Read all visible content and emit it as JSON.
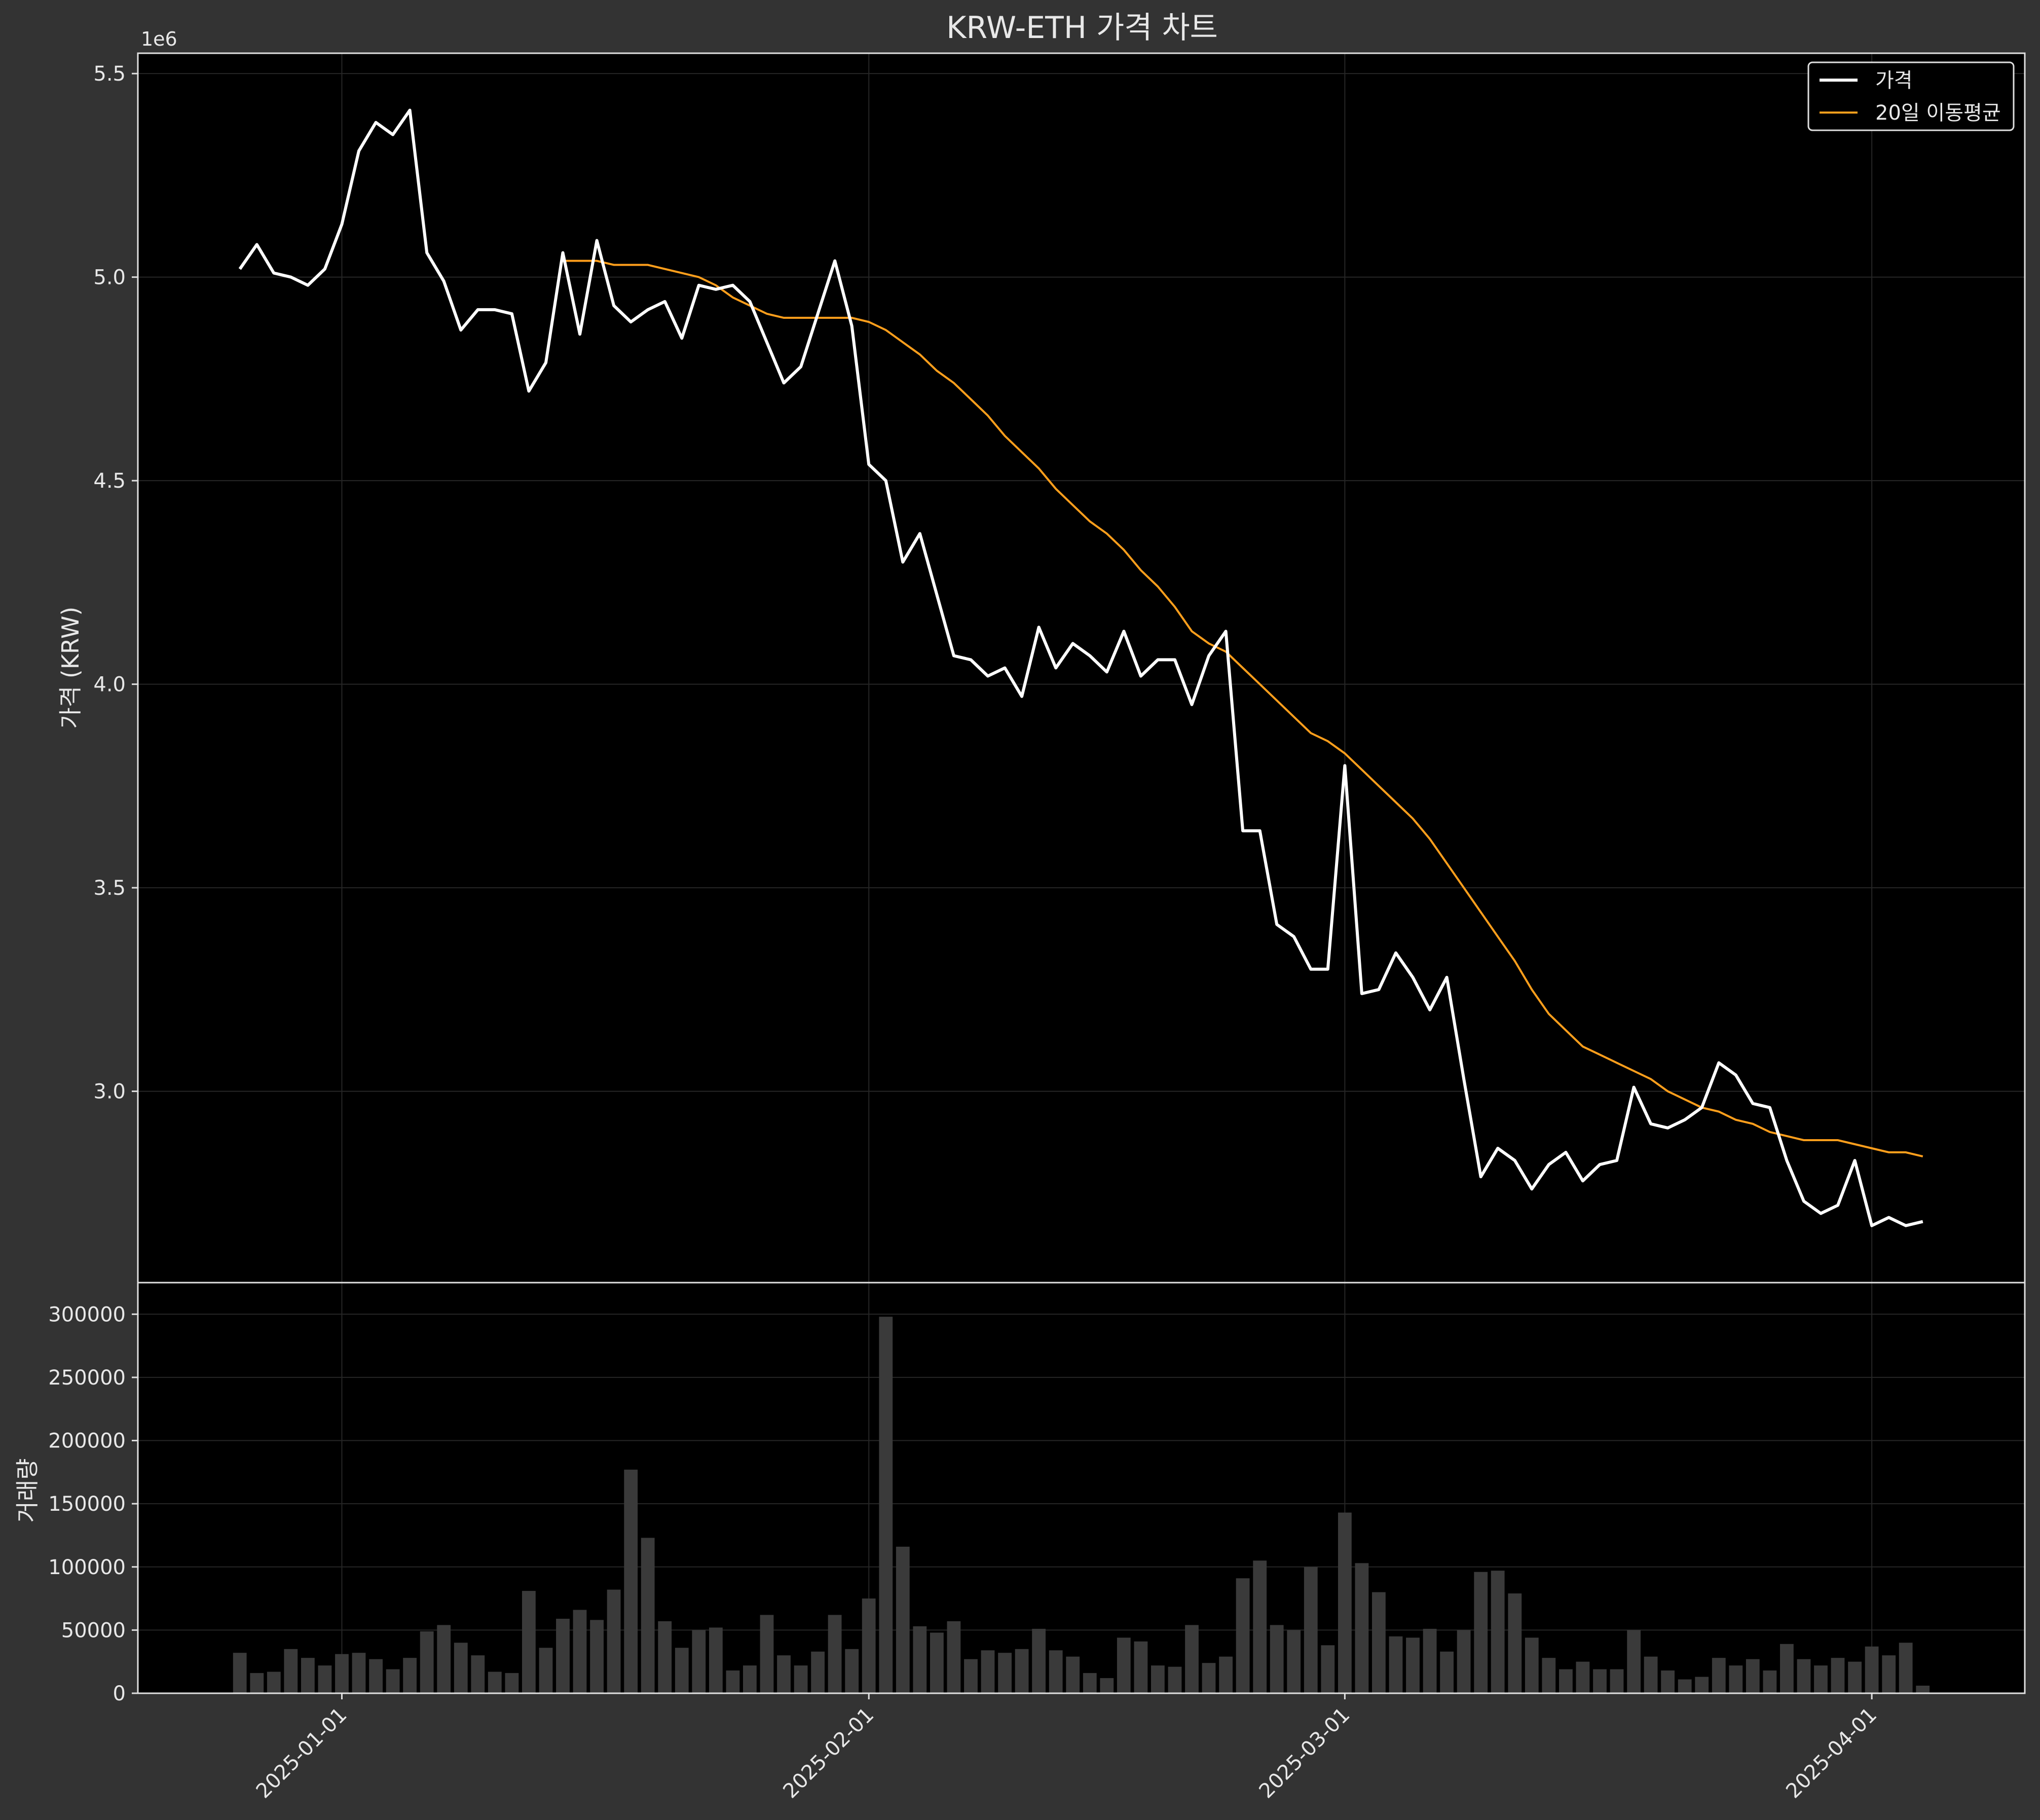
{
  "chart_data": [
    {
      "type": "line",
      "title": "KRW-ETH 가격 차트",
      "ylabel": "가격 (KRW)",
      "offset_label": "1e6",
      "ylim": [
        2.53,
        5.55
      ],
      "yticks": [
        3.0,
        3.5,
        4.0,
        4.5,
        5.0,
        5.5
      ],
      "ytick_labels": [
        "3.0",
        "3.5",
        "4.0",
        "4.5",
        "5.0",
        "5.5"
      ],
      "x_start": "2024-12-26",
      "x_end": "2025-04-05",
      "xlim": [
        "2024-12-20",
        "2025-04-10"
      ],
      "grid": true,
      "legend": "top-right",
      "series": [
        {
          "name": "가격",
          "color": "#ffffff",
          "values": [
            5.02,
            5.08,
            5.01,
            5.0,
            4.98,
            5.02,
            5.13,
            5.31,
            5.38,
            5.35,
            5.41,
            5.06,
            4.99,
            4.87,
            4.92,
            4.92,
            4.91,
            4.72,
            4.79,
            5.06,
            4.86,
            5.09,
            4.93,
            4.89,
            4.92,
            4.94,
            4.85,
            4.98,
            4.97,
            4.98,
            4.94,
            4.84,
            4.74,
            4.78,
            4.91,
            5.04,
            4.88,
            4.54,
            4.5,
            4.3,
            4.37,
            4.22,
            4.07,
            4.06,
            4.02,
            4.04,
            3.97,
            4.14,
            4.04,
            4.1,
            4.07,
            4.03,
            4.13,
            4.02,
            4.06,
            4.06,
            3.95,
            4.07,
            4.13,
            3.64,
            3.64,
            3.41,
            3.38,
            3.3,
            3.3,
            3.8,
            3.24,
            3.25,
            3.34,
            3.28,
            3.2,
            3.28,
            3.03,
            2.79,
            2.86,
            2.83,
            2.76,
            2.82,
            2.85,
            2.78,
            2.82,
            2.83,
            3.01,
            2.92,
            2.91,
            2.93,
            2.96,
            3.07,
            3.04,
            2.97,
            2.96,
            2.83,
            2.73,
            2.7,
            2.72,
            2.83,
            2.67,
            2.69,
            2.67,
            2.68
          ]
        },
        {
          "name": "20일 이동평균",
          "color": "#ff9f1c",
          "start_index": 19,
          "values": [
            5.04,
            5.04,
            5.04,
            5.03,
            5.03,
            5.03,
            5.02,
            5.01,
            5.0,
            4.98,
            4.95,
            4.93,
            4.91,
            4.9,
            4.9,
            4.9,
            4.9,
            4.9,
            4.89,
            4.87,
            4.84,
            4.81,
            4.77,
            4.74,
            4.7,
            4.66,
            4.61,
            4.57,
            4.53,
            4.48,
            4.44,
            4.4,
            4.37,
            4.33,
            4.28,
            4.24,
            4.19,
            4.13,
            4.1,
            4.08,
            4.04,
            4.0,
            3.96,
            3.92,
            3.88,
            3.86,
            3.83,
            3.79,
            3.75,
            3.71,
            3.67,
            3.62,
            3.56,
            3.5,
            3.44,
            3.38,
            3.32,
            3.25,
            3.19,
            3.15,
            3.11,
            3.09,
            3.07,
            3.05,
            3.03,
            3.0,
            2.98,
            2.96,
            2.95,
            2.93,
            2.92,
            2.9,
            2.89,
            2.88,
            2.88,
            2.88,
            2.87,
            2.86,
            2.85,
            2.85,
            2.84
          ]
        }
      ]
    },
    {
      "type": "bar",
      "ylabel": "거래량",
      "ylim": [
        0,
        325000
      ],
      "yticks": [
        0,
        50000,
        100000,
        150000,
        200000,
        250000,
        300000
      ],
      "ytick_labels": [
        "0",
        "50000",
        "100000",
        "150000",
        "200000",
        "250000",
        "300000"
      ],
      "xticks": [
        "2025-01-01",
        "2025-02-01",
        "2025-03-01",
        "2025-04-01"
      ],
      "xtick_labels": [
        "2025-01-01",
        "2025-02-01",
        "2025-03-01",
        "2025-04-01"
      ],
      "bar_color": "#3a3a3a",
      "values": [
        32000,
        16000,
        17000,
        35000,
        28000,
        22000,
        31000,
        32000,
        27000,
        19000,
        28000,
        49000,
        54000,
        40000,
        30000,
        17000,
        16000,
        81000,
        36000,
        59000,
        66000,
        58000,
        82000,
        177000,
        123000,
        57000,
        36000,
        50000,
        52000,
        18000,
        22000,
        62000,
        30000,
        22000,
        33000,
        62000,
        35000,
        75000,
        298000,
        116000,
        53000,
        48000,
        57000,
        27000,
        34000,
        32000,
        35000,
        51000,
        34000,
        29000,
        16000,
        12000,
        44000,
        41000,
        22000,
        21000,
        54000,
        24000,
        29000,
        91000,
        105000,
        54000,
        50000,
        100000,
        38000,
        143000,
        103000,
        80000,
        45000,
        44000,
        51000,
        33000,
        50000,
        96000,
        97000,
        79000,
        44000,
        28000,
        19000,
        25000,
        19000,
        19000,
        50000,
        29000,
        18000,
        11000,
        13000,
        28000,
        22000,
        27000,
        18000,
        39000,
        27000,
        22000,
        28000,
        25000,
        37000,
        30000,
        40000,
        6000
      ]
    }
  ]
}
